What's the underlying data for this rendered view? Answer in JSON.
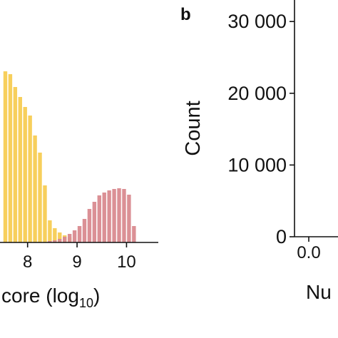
{
  "chart_data": [
    {
      "id": "a",
      "type": "bar",
      "xlabel_fragment": "core (log",
      "xlabel_subscript": "10",
      "xlabel_close": ")",
      "xlim": [
        7.5,
        10.7
      ],
      "ylim": [
        0,
        250
      ],
      "x_ticks": [
        8,
        9,
        10
      ],
      "x_tick_labels": [
        "8",
        "9",
        "10"
      ],
      "bin_width": 0.1,
      "series": [
        {
          "color": "#f7cf5c",
          "x": [
            7.55,
            7.65,
            7.75,
            7.85,
            7.95,
            8.05,
            8.15,
            8.25,
            8.35,
            8.45,
            8.55,
            8.65,
            8.75,
            8.85
          ],
          "values": [
            240,
            236,
            218,
            204,
            190,
            178,
            150,
            126,
            80,
            31,
            20,
            14,
            10,
            7
          ]
        },
        {
          "color": "#d98a8f",
          "x": [
            8.45,
            8.55,
            8.65,
            8.75,
            8.85,
            8.95,
            9.05,
            9.15,
            9.25,
            9.35,
            9.45,
            9.55,
            9.65,
            9.75,
            9.85,
            9.95,
            10.05,
            10.15
          ],
          "values": [
            2,
            3,
            5,
            8,
            12,
            17,
            23,
            33,
            47,
            57,
            66,
            70,
            73,
            75,
            76,
            75,
            67,
            23
          ]
        }
      ]
    },
    {
      "id": "b",
      "type": "bar",
      "panel_label": "b",
      "ylabel": "Count",
      "xlabel_fragment": "Nu",
      "ylim": [
        0,
        33000
      ],
      "y_ticks": [
        0,
        10000,
        20000,
        30000
      ],
      "y_tick_labels": [
        "0",
        "10 000",
        "20 000",
        "30 000"
      ],
      "x_tick_labels": [
        "0.0"
      ]
    }
  ]
}
